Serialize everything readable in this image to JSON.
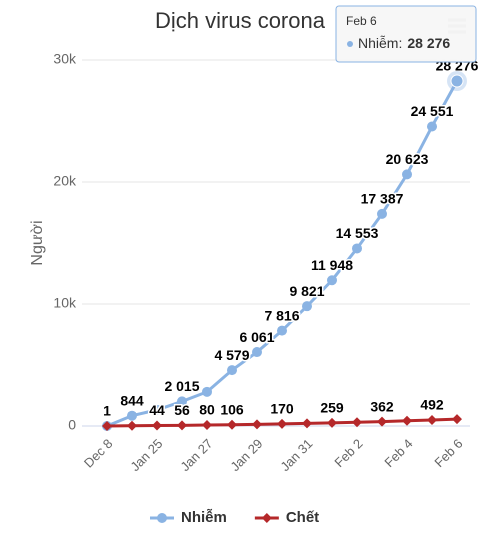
{
  "chart_data": {
    "type": "line",
    "title": "Dịch virus corona",
    "y_label": "Người",
    "categories": [
      "Dec 8",
      null,
      "Jan 25",
      null,
      "Jan 27",
      null,
      "Jan 29",
      null,
      "Jan 31",
      null,
      "Feb 2",
      null,
      "Feb 4",
      null,
      "Feb 6"
    ],
    "series": [
      {
        "name": "Nhiễm",
        "color": "#8ab3e3",
        "marker": "circle",
        "values": [
          1,
          844,
          1320,
          2015,
          2800,
          4579,
          6061,
          7816,
          9821,
          11948,
          14553,
          17387,
          20623,
          24551,
          28276
        ],
        "value_labels": [
          "1",
          "844",
          null,
          "2 015",
          null,
          "4 579",
          "6 061",
          "7 816",
          "9 821",
          "11 948",
          "14 553",
          "17 387",
          "20 623",
          "24 551",
          "28 276"
        ]
      },
      {
        "name": "Chết",
        "color": "#b5282a",
        "marker": "diamond",
        "values": [
          0,
          25,
          44,
          56,
          80,
          106,
          132,
          170,
          213,
          259,
          304,
          362,
          426,
          492,
          565
        ],
        "value_labels": [
          null,
          null,
          "44",
          "56",
          "80",
          "106",
          null,
          "170",
          null,
          "259",
          null,
          "362",
          null,
          "492",
          null
        ]
      }
    ],
    "ylim": [
      0,
      30000
    ],
    "yticks": [
      0,
      {
        "value": 10000,
        "label": "10k"
      },
      {
        "value": 20000,
        "label": "20k"
      },
      {
        "value": 30000,
        "label": "30k"
      }
    ],
    "grid": true,
    "legend": "bottom",
    "tooltip": {
      "series": 0,
      "index": 14,
      "label": "Nhiễm:"
    }
  }
}
